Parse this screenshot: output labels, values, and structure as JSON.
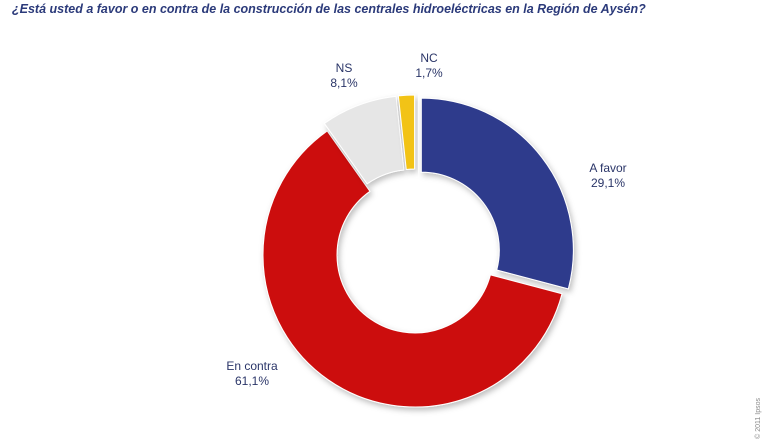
{
  "chart_data": {
    "type": "pie",
    "donut": true,
    "title": "¿Está usted a favor o en contra de la construcción de las centrales hidroeléctricas en la Región de Aysén?",
    "slices": [
      {
        "label": "A favor",
        "value_text": "29,1%",
        "value": 29.1,
        "color": "#2e3a8c",
        "exploded": true
      },
      {
        "label": "En contra",
        "value_text": "61,1%",
        "value": 61.1,
        "color": "#cc1111",
        "exploded": false
      },
      {
        "label": "NS",
        "value_text": "8,1%",
        "value": 8.1,
        "color": "#e6e6e6",
        "exploded": true
      },
      {
        "label": "NC",
        "value_text": "1,7%",
        "value": 1.7,
        "color": "#f2c318",
        "exploded": true
      }
    ]
  },
  "footer": {
    "copyright": "© 2011 Ipsos"
  }
}
